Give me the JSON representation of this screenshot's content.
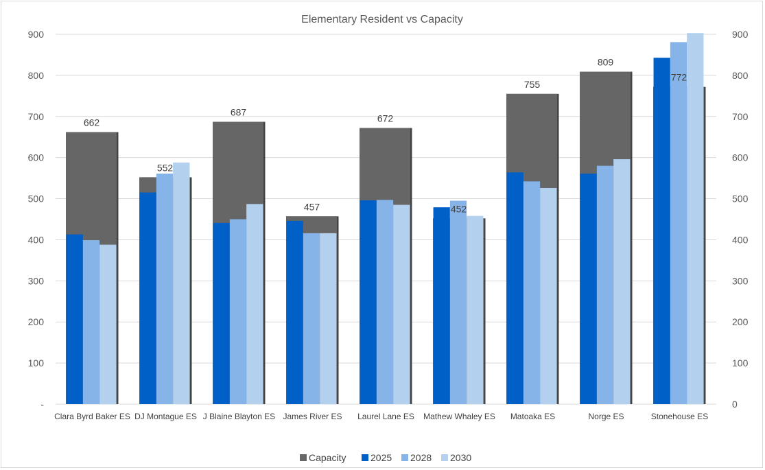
{
  "chart_data": {
    "type": "bar",
    "title": "Elementary Resident vs Capacity",
    "categories": [
      "Clara Byrd Baker ES",
      "DJ Montague ES",
      "J Blaine Blayton ES",
      "James River ES",
      "Laurel Lane ES",
      "Mathew Whaley ES",
      "Matoaka ES",
      "Norge ES",
      "Stonehouse ES"
    ],
    "capacity": {
      "name": "Capacity",
      "color": "#666666",
      "values": [
        662,
        552,
        687,
        457,
        672,
        452,
        755,
        809,
        772
      ],
      "labels": [
        "662",
        "552",
        "687",
        "457",
        "672",
        "452",
        "755",
        "809",
        "772"
      ]
    },
    "series": [
      {
        "name": "2025",
        "color": "#0060C8",
        "values": [
          413,
          515,
          441,
          446,
          496,
          479,
          564,
          561,
          843
        ]
      },
      {
        "name": "2028",
        "color": "#86B4E8",
        "values": [
          399,
          561,
          450,
          416,
          497,
          495,
          542,
          580,
          881
        ]
      },
      {
        "name": "2030",
        "color": "#B3D0EE",
        "values": [
          388,
          588,
          487,
          416,
          485,
          458,
          526,
          596,
          903
        ]
      }
    ],
    "ylim": [
      0,
      900
    ],
    "left_ticks": [
      "-",
      "100",
      "200",
      "300",
      "400",
      "500",
      "600",
      "700",
      "800",
      "900"
    ],
    "right_ticks": [
      "0",
      "100",
      "200",
      "300",
      "400",
      "500",
      "600",
      "700",
      "800",
      "900"
    ],
    "grid": true,
    "legend_position": "bottom"
  }
}
